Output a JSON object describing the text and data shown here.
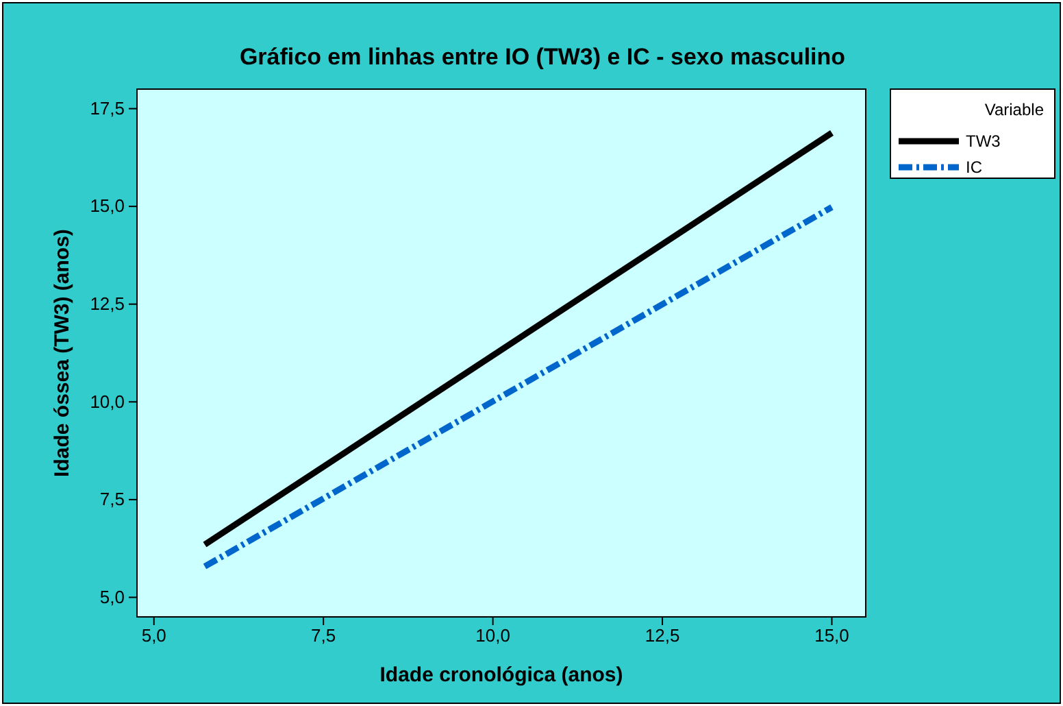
{
  "chart_data": {
    "type": "line",
    "title": "Gráfico em linhas entre IO (TW3) e IC - sexo masculino",
    "xlabel": "Idade cronológica (anos)",
    "ylabel": "Idade óssea (TW3) (anos)",
    "legend_title": "Variable",
    "legend": "top right",
    "x": [
      5.75,
      15.0
    ],
    "series": [
      {
        "name": "TW3",
        "color": "#000000",
        "values": [
          6.35,
          16.88
        ],
        "line_style": "solid"
      },
      {
        "name": "IC",
        "color": "#0066cc",
        "values": [
          5.79,
          14.98
        ],
        "line_style": "dashed"
      }
    ],
    "xlim": [
      4.75,
      15.5
    ],
    "xticks": [
      {
        "value": 5,
        "label": "5,0"
      },
      {
        "value": 7.5,
        "label": "7,5"
      },
      {
        "value": 10,
        "label": "10,0"
      },
      {
        "value": 12.5,
        "label": "12,5"
      },
      {
        "value": 15,
        "label": "15,0"
      }
    ],
    "ylim": [
      4.5,
      18.0
    ],
    "yticks": [
      {
        "value": 5,
        "label": "5,0"
      },
      {
        "value": 7.5,
        "label": "7,5"
      },
      {
        "value": 10,
        "label": "10,0"
      },
      {
        "value": 12.5,
        "label": "12,5"
      },
      {
        "value": 15,
        "label": "15,0"
      },
      {
        "value": 17.5,
        "label": "17,5"
      }
    ],
    "grid": false,
    "marker": "none"
  }
}
